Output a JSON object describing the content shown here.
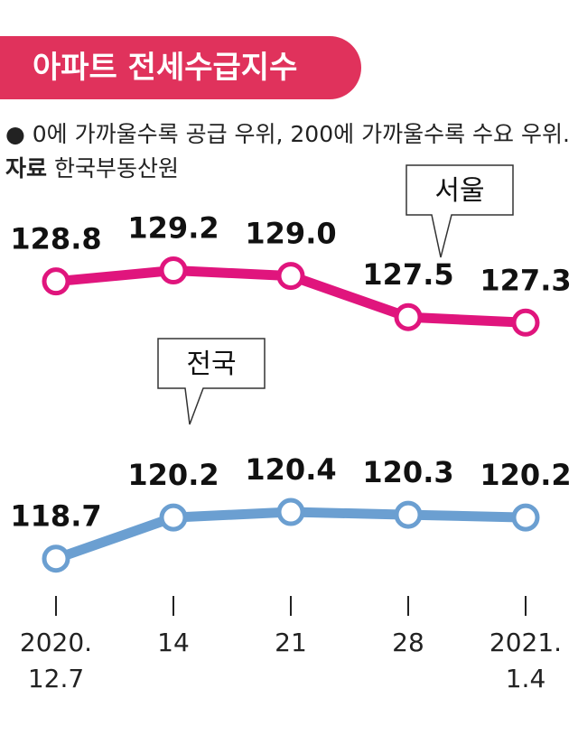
{
  "chart_data": {
    "type": "line",
    "title": "아파트 전세수급지수",
    "subtitle": "0에 가까울수록 공급 우위, 200에 가까울수록 수요 우위.",
    "source_label": "자료",
    "source": "한국부동산원",
    "categories": [
      "2020.\n12.7",
      "14",
      "21",
      "28",
      "2021.\n1.4"
    ],
    "ylim": [
      118,
      130.5
    ],
    "series": [
      {
        "name": "서울",
        "color": "#e0157d",
        "values": [
          128.8,
          129.2,
          129.0,
          127.5,
          127.3
        ],
        "value_labels": [
          "128.8",
          "129.2",
          "129.0",
          "127.5",
          "127.3"
        ]
      },
      {
        "name": "전국",
        "color": "#6b9fd1",
        "values": [
          118.7,
          120.2,
          120.4,
          120.3,
          120.2
        ],
        "value_labels": [
          "118.7",
          "120.2",
          "120.4",
          "120.3",
          "120.2"
        ]
      }
    ]
  }
}
